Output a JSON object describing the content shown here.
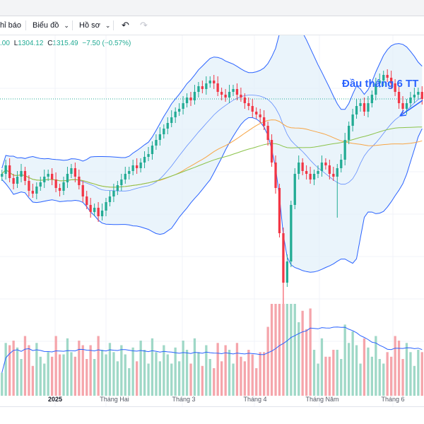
{
  "toolbar": {
    "indicators_label": "hỉ báo",
    "chart_label": "Biểu đồ",
    "profile_label": "Hồ sơ",
    "undo_icon": "undo-icon",
    "redo_icon": "redo-icon"
  },
  "ohlc": {
    "open_partial": ".00",
    "low_label": "L",
    "low_value": "1304.12",
    "close_label": "C",
    "close_value": "1315.49",
    "change": "−7.50 (−0.57%)"
  },
  "colors": {
    "up": "#22ab94",
    "down": "#f23645",
    "up_volume": "#9fd8c7",
    "down_volume": "#f5a5ab",
    "band_line": "#2962ff",
    "band_fill": "#e3f0fa",
    "ma_orange": "#f7a545",
    "ma_green": "#8bc34a",
    "annotation": "#2962ff"
  },
  "annotation": {
    "text": "Đầu tháng 6 TT"
  },
  "chart_data": {
    "type": "candlestick",
    "x_tick_labels": [
      "2025",
      "Tháng Hai",
      "Tháng 3",
      "Tháng 4",
      "Tháng Năm",
      "Tháng 6"
    ],
    "grid": true,
    "close_series": [
      1262,
      1268,
      1259,
      1255,
      1260,
      1264,
      1257,
      1250,
      1248,
      1253,
      1256,
      1260,
      1262,
      1258,
      1252,
      1250,
      1256,
      1262,
      1266,
      1260,
      1254,
      1246,
      1240,
      1235,
      1238,
      1232,
      1236,
      1242,
      1246,
      1250,
      1254,
      1258,
      1262,
      1264,
      1268,
      1266,
      1270,
      1274,
      1276,
      1282,
      1286,
      1290,
      1294,
      1298,
      1302,
      1306,
      1308,
      1312,
      1316,
      1314,
      1320,
      1324,
      1322,
      1326,
      1328,
      1326,
      1320,
      1318,
      1316,
      1320,
      1322,
      1318,
      1316,
      1312,
      1310,
      1306,
      1304,
      1302,
      1296,
      1286,
      1270,
      1252,
      1220,
      1185,
      1200,
      1240,
      1262,
      1270,
      1264,
      1262,
      1258,
      1262,
      1264,
      1270,
      1268,
      1262,
      1260,
      1266,
      1272,
      1286,
      1296,
      1304,
      1310,
      1312,
      1306,
      1312,
      1318,
      1326,
      1328,
      1332,
      1330,
      1326,
      1320,
      1312,
      1308,
      1312,
      1316,
      1318,
      1320,
      1315
    ]
  }
}
